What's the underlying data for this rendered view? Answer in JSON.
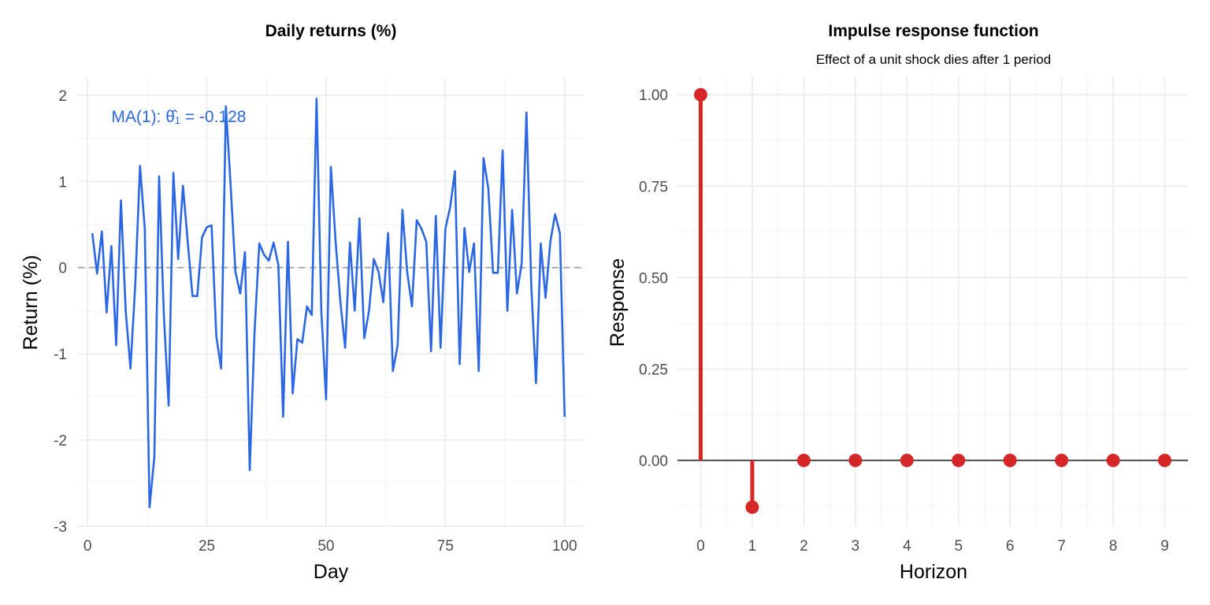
{
  "colors": {
    "line": "#2b67e3",
    "irf": "#d62728",
    "zero_line": "#999999",
    "axis_line": "#333333"
  },
  "chart_data": [
    {
      "type": "line",
      "title": "Daily returns (%)",
      "xlabel": "Day",
      "ylabel": "Return (%)",
      "xlim": [
        -2,
        104
      ],
      "ylim": [
        -3,
        2.2
      ],
      "xticks": [
        0,
        25,
        50,
        75,
        100
      ],
      "yticks": [
        -3,
        -2,
        -1,
        0,
        1,
        2
      ],
      "x_tick_labels": [
        "0",
        "25",
        "50",
        "75",
        "100"
      ],
      "y_tick_labels": [
        "-3",
        "-2",
        "-1",
        "0",
        "1",
        "2"
      ],
      "hline": 0,
      "grid": true,
      "annotation": "MA(1): θ̂₁ = -0.128",
      "annotation_at": {
        "x": 5,
        "y": 1.75
      },
      "x": [
        1,
        2,
        3,
        4,
        5,
        6,
        7,
        8,
        9,
        10,
        11,
        12,
        13,
        14,
        15,
        16,
        17,
        18,
        19,
        20,
        21,
        22,
        23,
        24,
        25,
        26,
        27,
        28,
        29,
        30,
        31,
        32,
        33,
        34,
        35,
        36,
        37,
        38,
        39,
        40,
        41,
        42,
        43,
        44,
        45,
        46,
        47,
        48,
        49,
        50,
        51,
        52,
        53,
        54,
        55,
        56,
        57,
        58,
        59,
        60,
        61,
        62,
        63,
        64,
        65,
        66,
        67,
        68,
        69,
        70,
        71,
        72,
        73,
        74,
        75,
        76,
        77,
        78,
        79,
        80,
        81,
        82,
        83,
        84,
        85,
        86,
        87,
        88,
        89,
        90,
        91,
        92,
        93,
        94,
        95,
        96,
        97,
        98,
        99,
        100
      ],
      "values": [
        0.4,
        -0.07,
        0.42,
        -0.52,
        0.25,
        -0.9,
        0.78,
        -0.5,
        -1.17,
        -0.2,
        1.18,
        0.45,
        -2.78,
        -2.2,
        1.06,
        -0.55,
        -1.6,
        1.1,
        0.1,
        0.95,
        0.3,
        -0.33,
        -0.33,
        0.35,
        0.47,
        0.49,
        -0.8,
        -1.17,
        1.87,
        0.95,
        -0.05,
        -0.3,
        0.18,
        -2.35,
        -0.75,
        0.28,
        0.15,
        0.08,
        0.29,
        0.03,
        -1.73,
        0.3,
        -1.46,
        -0.83,
        -0.87,
        -0.45,
        -0.55,
        1.96,
        -0.5,
        -1.53,
        1.17,
        0.3,
        -0.4,
        -0.93,
        0.29,
        -0.5,
        0.57,
        -0.82,
        -0.5,
        0.1,
        -0.05,
        -0.4,
        0.4,
        -1.2,
        -0.9,
        0.67,
        -0.05,
        -0.45,
        0.55,
        0.45,
        0.3,
        -0.97,
        0.6,
        -0.93,
        0.45,
        0.7,
        1.12,
        -1.12,
        0.46,
        -0.05,
        0.28,
        -1.2,
        1.27,
        0.92,
        -0.06,
        -0.06,
        1.36,
        -0.5,
        0.67,
        -0.3,
        0.05,
        1.8,
        -0.2,
        -1.34,
        0.28,
        -0.35,
        0.3,
        0.62,
        0.4,
        -1.73
      ]
    },
    {
      "type": "stem",
      "title": "Impulse response function",
      "subtitle": "Effect of a unit shock dies after 1 period",
      "xlabel": "Horizon",
      "ylabel": "Response",
      "xlim": [
        -0.45,
        9.45
      ],
      "ylim": [
        -0.18,
        1.05
      ],
      "xticks": [
        0,
        1,
        2,
        3,
        4,
        5,
        6,
        7,
        8,
        9
      ],
      "yticks": [
        0,
        0.25,
        0.5,
        0.75,
        1
      ],
      "x_tick_labels": [
        "0",
        "1",
        "2",
        "3",
        "4",
        "5",
        "6",
        "7",
        "8",
        "9"
      ],
      "y_tick_labels": [
        "0.00",
        "0.25",
        "0.50",
        "0.75",
        "1.00"
      ],
      "hline": 0,
      "grid": true,
      "x": [
        0,
        1,
        2,
        3,
        4,
        5,
        6,
        7,
        8,
        9
      ],
      "values": [
        1.0,
        -0.128,
        0,
        0,
        0,
        0,
        0,
        0,
        0,
        0
      ]
    }
  ]
}
